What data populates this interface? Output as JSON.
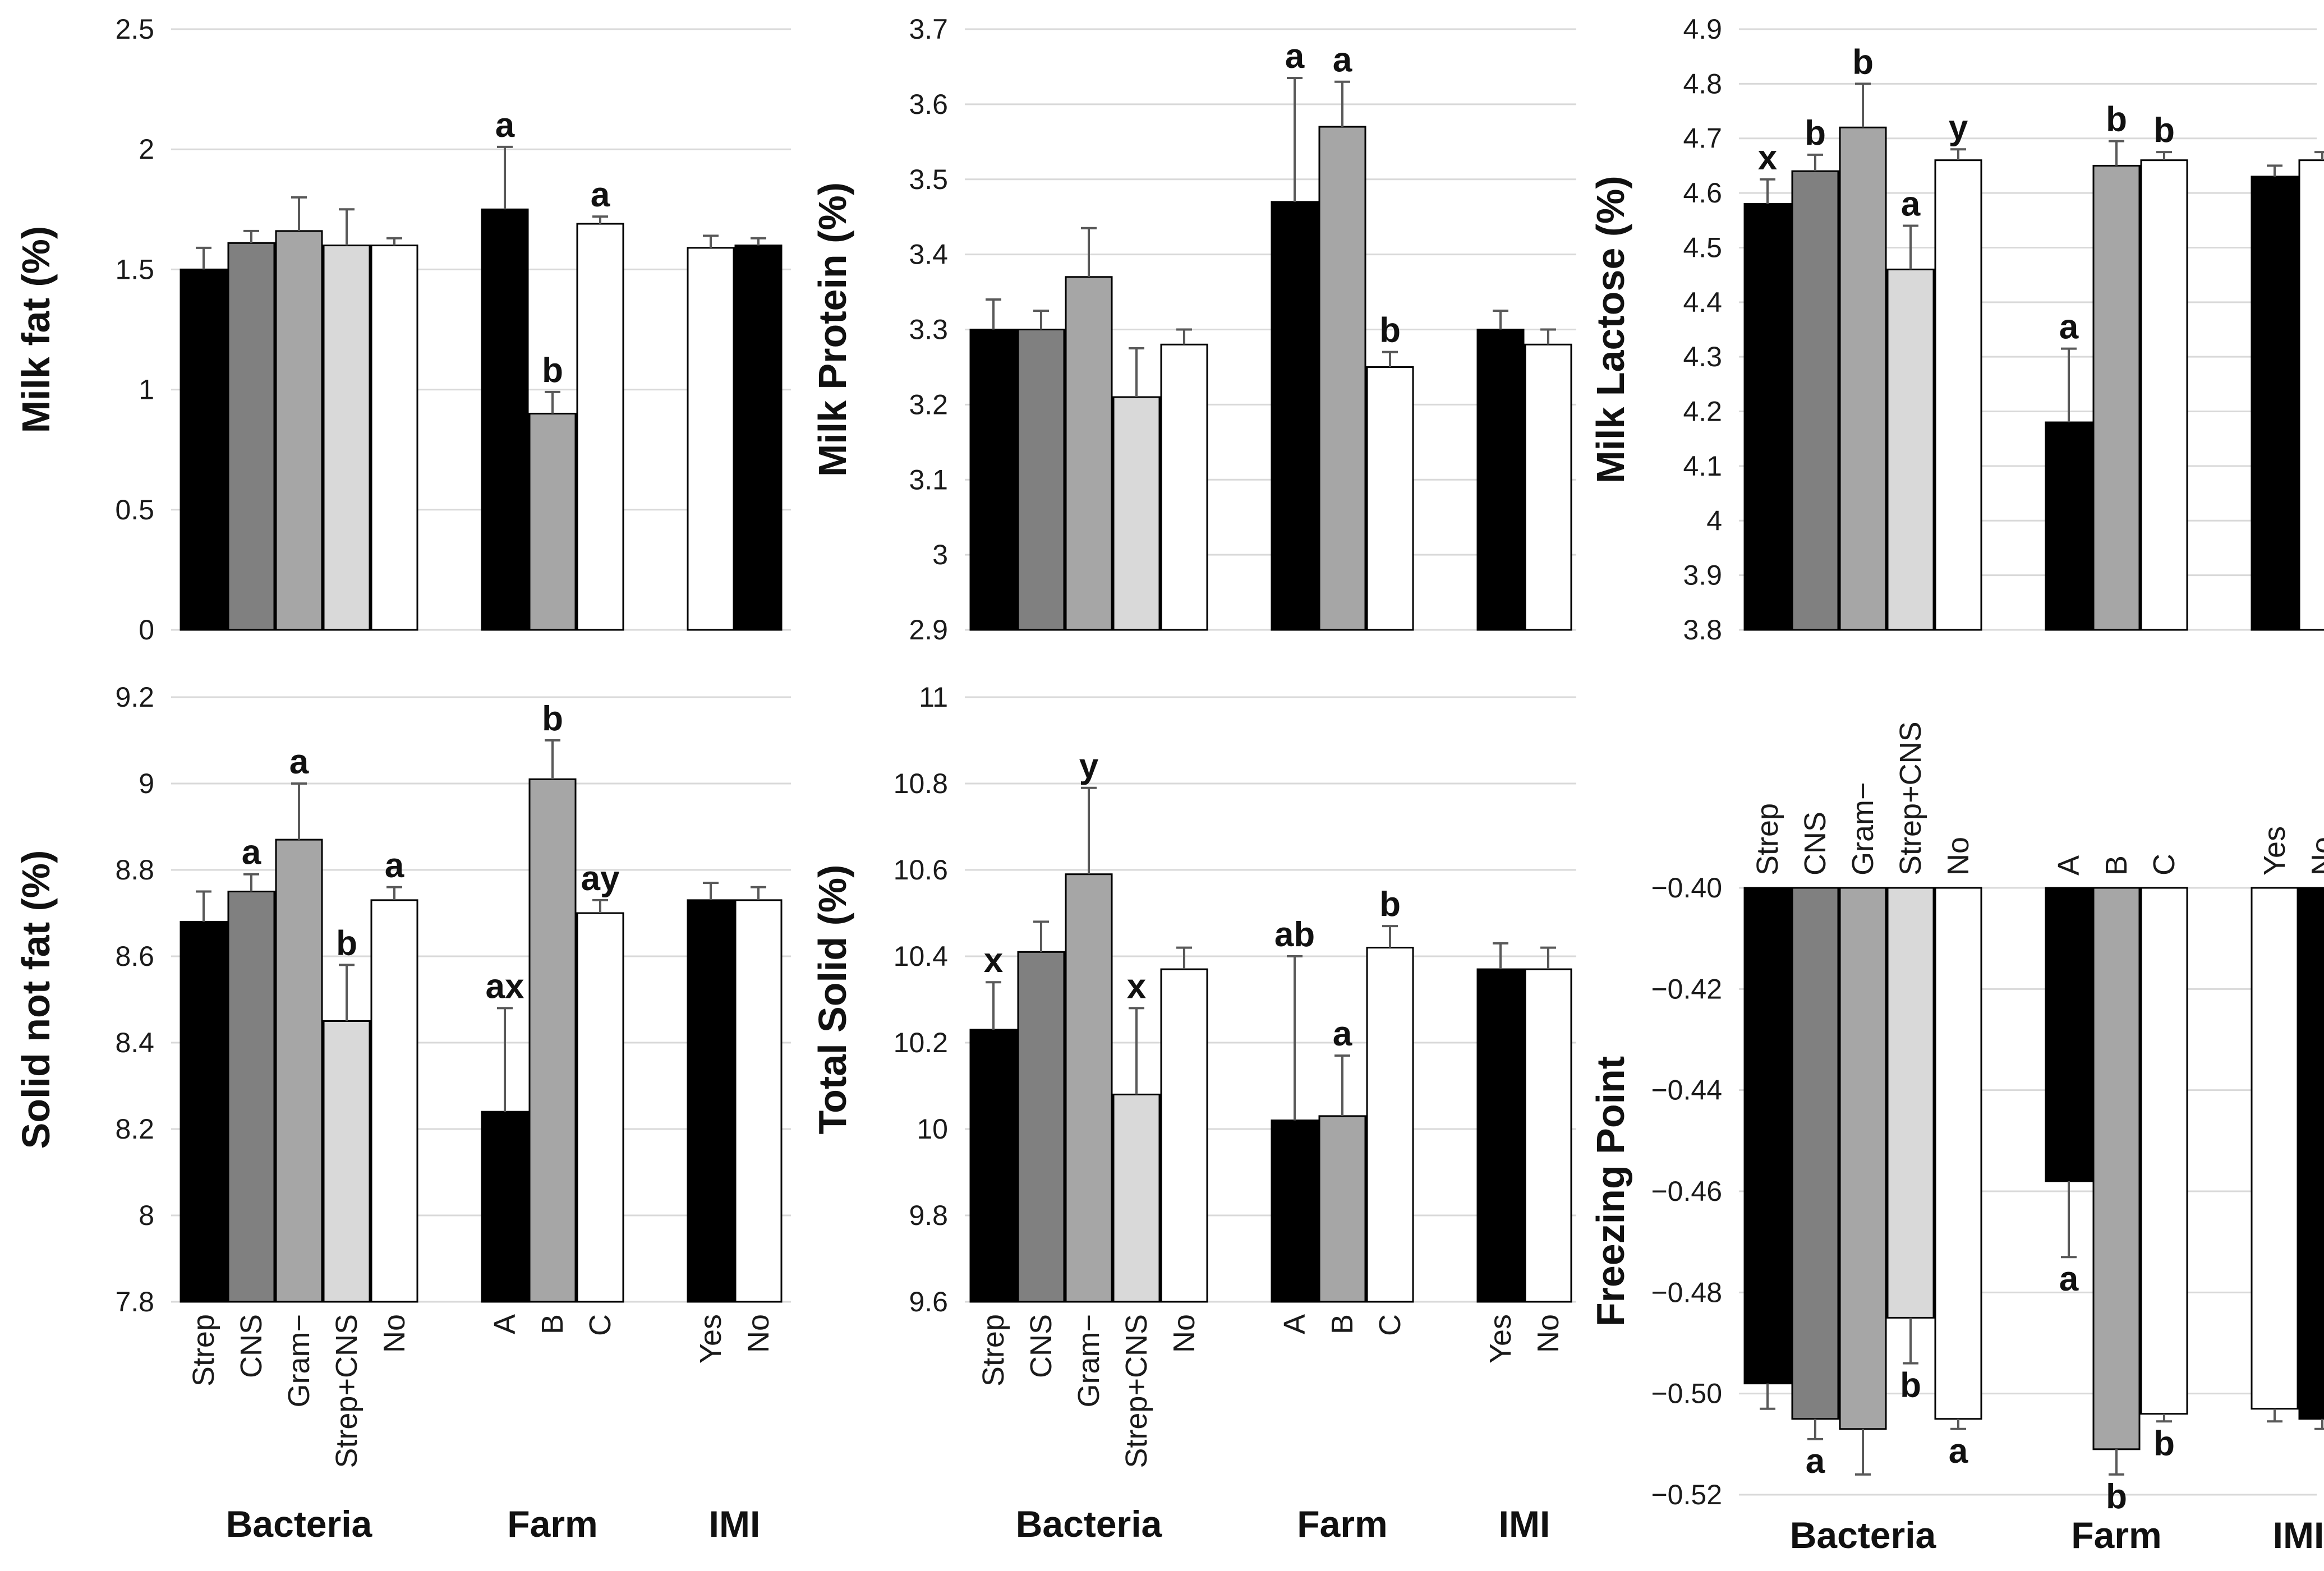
{
  "colors": {
    "black": "#000000",
    "dark_gray": "#808080",
    "mid_gray": "#a6a6a6",
    "light_gray": "#d9d9d9",
    "white": "#ffffff",
    "grid": "#d9d9d9",
    "bar_edge": "#000000",
    "error_bar": "#595959"
  },
  "chart_data": [
    {
      "type": "bar",
      "ylabel": "Milk fat (%)",
      "ylim": [
        0,
        2.5
      ],
      "ystep": 0.5,
      "yticks": [
        "0",
        "0.5",
        "1",
        "1.5",
        "2",
        "2.5"
      ],
      "grid": true,
      "groups": [
        "",
        "",
        ""
      ],
      "categories": [
        [
          "Strep",
          "CNS",
          "Gram−",
          "Strep+CNS",
          "No"
        ],
        [
          "A",
          "B",
          "C"
        ],
        [
          "Yes",
          "No"
        ]
      ],
      "values": [
        [
          1.5,
          1.61,
          1.66,
          1.6,
          1.6
        ],
        [
          1.75,
          0.9,
          1.69
        ],
        [
          1.59,
          1.6
        ]
      ],
      "errors": [
        [
          0.09,
          0.05,
          0.14,
          0.15,
          0.03
        ],
        [
          0.26,
          0.09,
          0.03
        ],
        [
          0.05,
          0.03
        ]
      ],
      "labels": [
        [
          "",
          "",
          "",
          "",
          ""
        ],
        [
          "a",
          "b",
          "a"
        ],
        [
          "",
          ""
        ]
      ],
      "fills": [
        [
          "black",
          "dark_gray",
          "mid_gray",
          "light_gray",
          "white"
        ],
        [
          "black",
          "mid_gray",
          "white"
        ],
        [
          "white",
          "black"
        ]
      ]
    },
    {
      "type": "bar",
      "ylabel": "Milk Protein (%)",
      "ylim": [
        2.9,
        3.7
      ],
      "ystep": 0.1,
      "yticks": [
        "2.9",
        "3",
        "3.1",
        "3.2",
        "3.3",
        "3.4",
        "3.5",
        "3.6",
        "3.7"
      ],
      "grid": true,
      "groups": [
        "",
        "",
        ""
      ],
      "categories": [
        [
          "Strep",
          "CNS",
          "Gram−",
          "Strep+CNS",
          "No"
        ],
        [
          "A",
          "B",
          "C"
        ],
        [
          "Yes",
          "No"
        ]
      ],
      "values": [
        [
          3.3,
          3.3,
          3.37,
          3.21,
          3.28
        ],
        [
          3.47,
          3.57,
          3.25
        ],
        [
          3.3,
          3.28
        ]
      ],
      "errors": [
        [
          0.04,
          0.025,
          0.065,
          0.065,
          0.02
        ],
        [
          0.165,
          0.06,
          0.02
        ],
        [
          0.025,
          0.02
        ]
      ],
      "labels": [
        [
          "",
          "",
          "",
          "",
          ""
        ],
        [
          "a",
          "a",
          "b"
        ],
        [
          "",
          ""
        ]
      ],
      "fills": [
        [
          "black",
          "dark_gray",
          "mid_gray",
          "light_gray",
          "white"
        ],
        [
          "black",
          "mid_gray",
          "white"
        ],
        [
          "black",
          "white"
        ]
      ]
    },
    {
      "type": "bar",
      "ylabel": "Milk Lactose (%)",
      "ylim": [
        3.8,
        4.9
      ],
      "ystep": 0.1,
      "yticks": [
        "3.8",
        "3.9",
        "4",
        "4.1",
        "4.2",
        "4.3",
        "4.4",
        "4.5",
        "4.6",
        "4.7",
        "4.8",
        "4.9"
      ],
      "grid": true,
      "groups": [
        "",
        "",
        ""
      ],
      "categories": [
        [
          "Strep",
          "CNS",
          "Gram−",
          "Strep+CNS",
          "No"
        ],
        [
          "A",
          "B",
          "C"
        ],
        [
          "Yes",
          "No"
        ]
      ],
      "values": [
        [
          4.58,
          4.64,
          4.72,
          4.46,
          4.66
        ],
        [
          4.18,
          4.65,
          4.66
        ],
        [
          4.63,
          4.66
        ]
      ],
      "errors": [
        [
          0.045,
          0.03,
          0.08,
          0.08,
          0.02
        ],
        [
          0.135,
          0.045,
          0.015
        ],
        [
          0.02,
          0.015
        ]
      ],
      "labels": [
        [
          "x",
          "b",
          "b",
          "a",
          "y"
        ],
        [
          "a",
          "b",
          "b"
        ],
        [
          "",
          ""
        ]
      ],
      "fills": [
        [
          "black",
          "dark_gray",
          "mid_gray",
          "light_gray",
          "white"
        ],
        [
          "black",
          "mid_gray",
          "white"
        ],
        [
          "black",
          "white"
        ]
      ]
    },
    {
      "type": "bar",
      "ylabel": "Solid not fat (%)",
      "ylim": [
        7.8,
        9.2
      ],
      "ystep": 0.2,
      "yticks": [
        "7.8",
        "8",
        "8.2",
        "8.4",
        "8.6",
        "8.8",
        "9",
        "9.2"
      ],
      "grid": true,
      "groups": [
        "Bacteria",
        "Farm",
        "IMI"
      ],
      "categories": [
        [
          "Strep",
          "CNS",
          "Gram−",
          "Strep+CNS",
          "No"
        ],
        [
          "A",
          "B",
          "C"
        ],
        [
          "Yes",
          "No"
        ]
      ],
      "values": [
        [
          8.68,
          8.75,
          8.87,
          8.45,
          8.73
        ],
        [
          8.24,
          9.01,
          8.7
        ],
        [
          8.73,
          8.73
        ]
      ],
      "errors": [
        [
          0.07,
          0.04,
          0.13,
          0.13,
          0.03
        ],
        [
          0.24,
          0.09,
          0.03
        ],
        [
          0.04,
          0.03
        ]
      ],
      "labels": [
        [
          "",
          "a",
          "a",
          "b",
          "a"
        ],
        [
          "ax",
          "b",
          "ay"
        ],
        [
          "",
          ""
        ]
      ],
      "fills": [
        [
          "black",
          "dark_gray",
          "mid_gray",
          "light_gray",
          "white"
        ],
        [
          "black",
          "mid_gray",
          "white"
        ],
        [
          "black",
          "white"
        ]
      ]
    },
    {
      "type": "bar",
      "ylabel": "Total Solid (%)",
      "ylim": [
        9.6,
        11
      ],
      "ystep": 0.2,
      "yticks": [
        "9.6",
        "9.8",
        "10",
        "10.2",
        "10.4",
        "10.6",
        "10.8",
        "11"
      ],
      "grid": true,
      "groups": [
        "Bacteria",
        "Farm",
        "IMI"
      ],
      "categories": [
        [
          "Strep",
          "CNS",
          "Gram−",
          "Strep+CNS",
          "No"
        ],
        [
          "A",
          "B",
          "C"
        ],
        [
          "Yes",
          "No"
        ]
      ],
      "values": [
        [
          10.23,
          10.41,
          10.59,
          10.08,
          10.37
        ],
        [
          10.02,
          10.03,
          10.42
        ],
        [
          10.37,
          10.37
        ]
      ],
      "errors": [
        [
          0.11,
          0.07,
          0.2,
          0.2,
          0.05
        ],
        [
          0.38,
          0.14,
          0.05
        ],
        [
          0.06,
          0.05
        ]
      ],
      "labels": [
        [
          "x",
          "",
          "y",
          "x",
          ""
        ],
        [
          "ab",
          "a",
          "b"
        ],
        [
          "",
          ""
        ]
      ],
      "fills": [
        [
          "black",
          "dark_gray",
          "mid_gray",
          "light_gray",
          "white"
        ],
        [
          "black",
          "mid_gray",
          "white"
        ],
        [
          "black",
          "white"
        ]
      ]
    },
    {
      "type": "bar",
      "ylabel": "Freezing Point",
      "ylim": [
        -0.52,
        -0.4
      ],
      "ystep": 0.02,
      "yticks": [
        "−0.52",
        "−0.50",
        "−0.48",
        "−0.46",
        "−0.44",
        "−0.42",
        "−0.40"
      ],
      "grid": true,
      "inverted": true,
      "groups": [
        "Bacteria",
        "Farm",
        "IMI"
      ],
      "categories": [
        [
          "Strep",
          "CNS",
          "Gram−",
          "Strep+CNS",
          "No"
        ],
        [
          "A",
          "B",
          "C"
        ],
        [
          "Yes",
          "No"
        ]
      ],
      "values": [
        [
          -0.498,
          -0.505,
          -0.507,
          -0.485,
          -0.505
        ],
        [
          -0.458,
          -0.511,
          -0.504
        ],
        [
          -0.503,
          -0.505
        ]
      ],
      "errors": [
        [
          0.005,
          0.004,
          0.009,
          0.009,
          0.002
        ],
        [
          0.015,
          0.005,
          0.0015
        ],
        [
          0.0025,
          0.002
        ]
      ],
      "labels": [
        [
          "",
          "a",
          "",
          "b",
          "a"
        ],
        [
          "a",
          "b",
          "b"
        ],
        [
          "",
          ""
        ]
      ],
      "fills": [
        [
          "black",
          "dark_gray",
          "mid_gray",
          "light_gray",
          "white"
        ],
        [
          "black",
          "mid_gray",
          "white"
        ],
        [
          "white",
          "black"
        ]
      ]
    }
  ]
}
